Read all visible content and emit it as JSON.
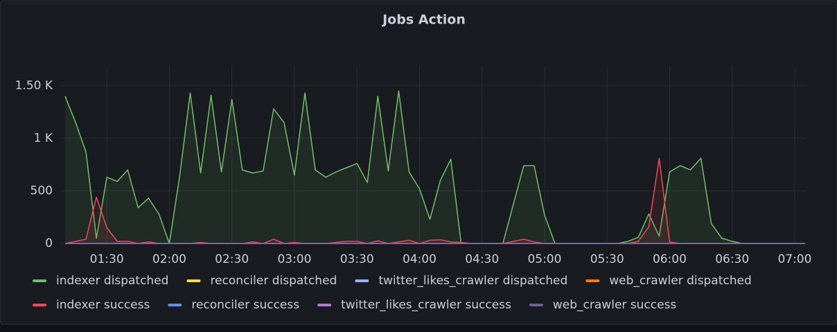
{
  "chart_data": {
    "type": "line",
    "title": "Jobs Action",
    "x": [
      "01:10",
      "01:15",
      "01:20",
      "01:25",
      "01:30",
      "01:35",
      "01:40",
      "01:45",
      "01:50",
      "01:55",
      "02:00",
      "02:05",
      "02:10",
      "02:15",
      "02:20",
      "02:25",
      "02:30",
      "02:35",
      "02:40",
      "02:45",
      "02:50",
      "02:55",
      "03:00",
      "03:05",
      "03:10",
      "03:15",
      "03:20",
      "03:25",
      "03:30",
      "03:35",
      "03:40",
      "03:45",
      "03:50",
      "03:55",
      "04:00",
      "04:05",
      "04:10",
      "04:15",
      "04:20",
      "04:25",
      "04:30",
      "04:35",
      "04:40",
      "04:45",
      "04:50",
      "04:55",
      "05:00",
      "05:05",
      "05:10",
      "05:15",
      "05:20",
      "05:25",
      "05:30",
      "05:35",
      "05:40",
      "05:45",
      "05:50",
      "05:55",
      "06:00",
      "06:05",
      "06:10",
      "06:15",
      "06:20",
      "06:25",
      "06:30",
      "06:35",
      "06:40",
      "06:45",
      "06:50",
      "06:55",
      "07:00",
      "07:05"
    ],
    "xlim": [
      "01:08",
      "07:06"
    ],
    "xticks": [
      "01:30",
      "02:00",
      "02:30",
      "03:00",
      "03:30",
      "04:00",
      "04:30",
      "05:00",
      "05:30",
      "06:00",
      "06:30",
      "07:00"
    ],
    "ylim": [
      0,
      1690
    ],
    "yticks": [
      0,
      500,
      {
        "value": 1000,
        "label": "1 K"
      },
      {
        "value": 1500,
        "label": "1.50 K"
      }
    ],
    "grid": true,
    "fill": true,
    "series": [
      {
        "name": "indexer dispatched",
        "color": "#73bf69",
        "values": [
          1400,
          1150,
          870,
          50,
          630,
          590,
          700,
          340,
          430,
          280,
          0,
          650,
          1430,
          670,
          1410,
          680,
          1370,
          700,
          670,
          690,
          1280,
          1150,
          650,
          1430,
          700,
          630,
          680,
          720,
          760,
          580,
          1400,
          690,
          1450,
          680,
          520,
          230,
          600,
          800,
          0,
          0,
          0,
          0,
          0,
          370,
          740,
          740,
          270,
          0,
          0,
          0,
          0,
          0,
          0,
          0,
          20,
          60,
          280,
          70,
          680,
          740,
          700,
          810,
          190,
          50,
          20,
          0,
          0,
          0,
          0,
          0,
          0,
          0
        ]
      },
      {
        "name": "reconciler dispatched",
        "color": "#fade2a",
        "values": [
          0,
          0,
          0,
          0,
          0,
          0,
          0,
          0,
          0,
          0,
          0,
          0,
          0,
          0,
          0,
          0,
          0,
          0,
          0,
          0,
          0,
          0,
          0,
          0,
          0,
          0,
          0,
          0,
          0,
          0,
          0,
          0,
          0,
          0,
          0,
          0,
          0,
          0,
          0,
          0,
          0,
          0,
          0,
          0,
          0,
          0,
          0,
          0,
          0,
          0,
          0,
          0,
          0,
          0,
          0,
          0,
          0,
          0,
          0,
          0,
          0,
          0,
          0,
          0,
          0,
          0,
          0,
          0,
          0,
          0,
          0,
          0
        ]
      },
      {
        "name": "twitter_likes_crawler dispatched",
        "color": "#8ab8ff",
        "values": [
          0,
          0,
          0,
          0,
          0,
          0,
          0,
          0,
          0,
          0,
          0,
          0,
          0,
          0,
          0,
          0,
          0,
          0,
          0,
          0,
          0,
          0,
          0,
          0,
          0,
          0,
          0,
          0,
          0,
          0,
          0,
          0,
          0,
          0,
          0,
          0,
          0,
          0,
          0,
          0,
          0,
          0,
          0,
          0,
          0,
          0,
          0,
          0,
          0,
          0,
          0,
          0,
          0,
          0,
          0,
          0,
          0,
          0,
          0,
          0,
          0,
          0,
          0,
          0,
          0,
          0,
          0,
          0,
          0,
          0,
          0,
          0
        ]
      },
      {
        "name": "web_crawler dispatched",
        "color": "#ff780a",
        "values": [
          0,
          0,
          0,
          0,
          0,
          0,
          0,
          0,
          0,
          0,
          0,
          0,
          0,
          0,
          0,
          0,
          0,
          0,
          0,
          0,
          0,
          0,
          0,
          0,
          0,
          0,
          0,
          0,
          0,
          0,
          0,
          0,
          0,
          0,
          0,
          0,
          0,
          0,
          0,
          0,
          0,
          0,
          0,
          0,
          0,
          0,
          0,
          0,
          0,
          0,
          0,
          0,
          0,
          0,
          0,
          0,
          0,
          0,
          0,
          0,
          0,
          0,
          0,
          0,
          0,
          0,
          0,
          0,
          0,
          0,
          0,
          0
        ]
      },
      {
        "name": "indexer success",
        "color": "#f2495c",
        "values": [
          0,
          20,
          40,
          440,
          150,
          20,
          20,
          0,
          15,
          0,
          0,
          0,
          0,
          10,
          0,
          0,
          0,
          0,
          15,
          0,
          40,
          0,
          10,
          0,
          0,
          0,
          10,
          20,
          20,
          0,
          25,
          0,
          15,
          30,
          0,
          30,
          35,
          15,
          10,
          0,
          0,
          0,
          0,
          20,
          40,
          15,
          0,
          0,
          0,
          0,
          0,
          0,
          0,
          0,
          0,
          20,
          160,
          810,
          15,
          0,
          0,
          0,
          0,
          0,
          0,
          0,
          0,
          0,
          0,
          0,
          0,
          0
        ]
      },
      {
        "name": "reconciler success",
        "color": "#5794f2",
        "values": [
          0,
          0,
          0,
          0,
          0,
          0,
          0,
          0,
          0,
          0,
          0,
          0,
          0,
          0,
          0,
          0,
          0,
          0,
          0,
          0,
          0,
          0,
          0,
          0,
          0,
          0,
          0,
          0,
          0,
          0,
          0,
          0,
          0,
          0,
          0,
          0,
          0,
          0,
          0,
          0,
          0,
          0,
          0,
          0,
          0,
          0,
          0,
          0,
          0,
          0,
          0,
          0,
          0,
          0,
          0,
          0,
          0,
          0,
          0,
          0,
          0,
          0,
          0,
          0,
          0,
          0,
          0,
          0,
          0,
          0,
          0,
          0
        ]
      },
      {
        "name": "twitter_likes_crawler success",
        "color": "#b877d9",
        "values": [
          0,
          0,
          0,
          0,
          0,
          0,
          0,
          0,
          0,
          0,
          0,
          0,
          0,
          0,
          0,
          0,
          0,
          0,
          0,
          0,
          0,
          0,
          0,
          0,
          0,
          0,
          0,
          0,
          0,
          0,
          0,
          0,
          0,
          0,
          0,
          0,
          0,
          0,
          0,
          0,
          0,
          0,
          0,
          0,
          0,
          0,
          0,
          0,
          0,
          0,
          0,
          0,
          0,
          0,
          0,
          0,
          0,
          0,
          0,
          0,
          0,
          0,
          0,
          0,
          0,
          0,
          0,
          0,
          0,
          0,
          0,
          0
        ]
      },
      {
        "name": "web_crawler success",
        "color": "#705da0",
        "values": [
          0,
          0,
          0,
          0,
          0,
          0,
          0,
          0,
          0,
          0,
          0,
          0,
          0,
          0,
          0,
          0,
          0,
          0,
          0,
          0,
          0,
          0,
          0,
          0,
          0,
          0,
          0,
          0,
          0,
          0,
          0,
          0,
          0,
          0,
          0,
          0,
          0,
          0,
          0,
          0,
          0,
          0,
          0,
          0,
          0,
          0,
          0,
          0,
          0,
          0,
          0,
          0,
          0,
          0,
          0,
          0,
          0,
          0,
          0,
          0,
          0,
          0,
          0,
          0,
          0,
          0,
          0,
          0,
          0,
          0,
          0,
          0
        ]
      }
    ]
  }
}
